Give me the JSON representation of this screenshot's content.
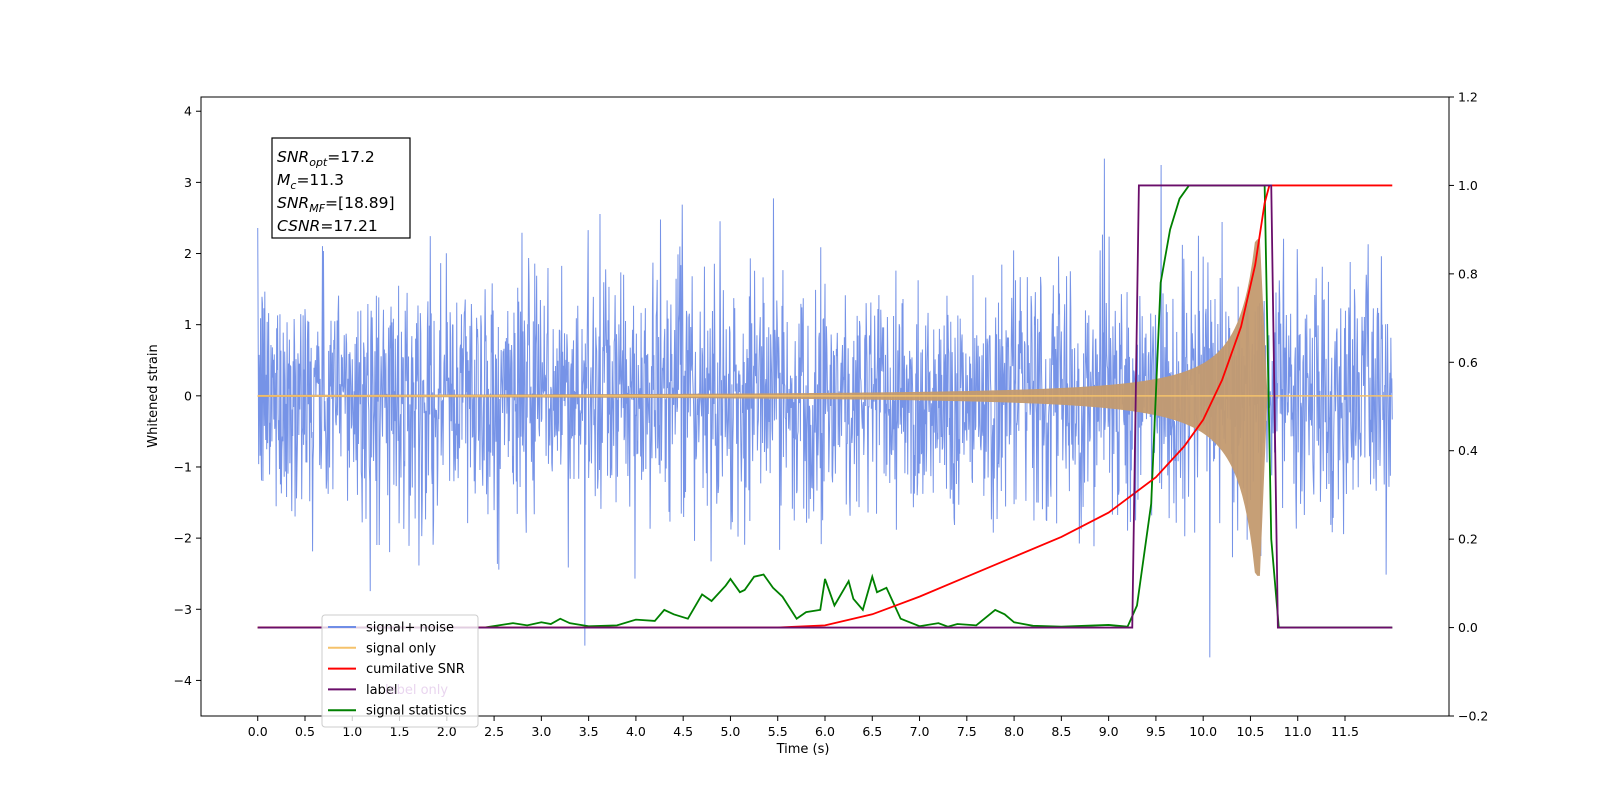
{
  "chart_data": {
    "type": "line",
    "xlabel": "Time (s)",
    "ylabel": "Whitened strain",
    "xlim": [
      -0.6,
      12.6
    ],
    "ylim": [
      -4.5,
      4.2
    ],
    "y2lim": [
      -0.2,
      1.2
    ],
    "x_ticks": [
      "0.0",
      "0.5",
      "1.0",
      "1.5",
      "2.0",
      "2.5",
      "3.0",
      "3.5",
      "4.0",
      "4.5",
      "5.0",
      "5.5",
      "6.0",
      "6.5",
      "7.0",
      "7.5",
      "8.0",
      "8.5",
      "9.0",
      "9.5",
      "10.0",
      "10.5",
      "11.0",
      "11.5"
    ],
    "y_ticks": [
      "4",
      "3",
      "2",
      "1",
      "0",
      "−1",
      "−2",
      "−3",
      "−4"
    ],
    "y2_ticks": [
      "1.2",
      "1.0",
      "0.8",
      "0.6",
      "0.4",
      "0.2",
      "0.0",
      "−0.2"
    ],
    "legend_position": "lower-left",
    "grid": false,
    "info_box": [
      {
        "sym": "SNR",
        "sub": "opt",
        "val": "=17.2"
      },
      {
        "sym": "M",
        "sub": "c",
        "val": "=11.3"
      },
      {
        "sym": "SNR",
        "sub": "MF",
        "val": "=[18.89]"
      },
      {
        "sym": "CSNR",
        "sub": "",
        "val": "=17.21"
      }
    ],
    "series": [
      {
        "name": "signal+ noise",
        "color": "#6f8de6",
        "axis": "left",
        "description": "whitened noisy strain, approx. gaussian with std ~0.85 around 0, from t=0.0 to 12.0 s"
      },
      {
        "name": "signal only",
        "color": "#f5c26b",
        "axis": "left",
        "description": "chirp with amplitude growing from ~0 to ~2.2 peak near t=10.65 s, then 0"
      },
      {
        "name": "cumilative SNR",
        "color": "#ff0000",
        "axis": "right",
        "x": [
          0,
          5.5,
          6.0,
          6.5,
          7.0,
          7.5,
          8.0,
          8.5,
          9.0,
          9.5,
          9.8,
          10.0,
          10.2,
          10.4,
          10.55,
          10.65,
          10.7,
          12.0
        ],
        "values": [
          0,
          0,
          0.005,
          0.03,
          0.07,
          0.115,
          0.16,
          0.205,
          0.26,
          0.34,
          0.41,
          0.47,
          0.56,
          0.68,
          0.82,
          0.96,
          1.0,
          1.0
        ]
      },
      {
        "name": "label",
        "color": "#6a0d6a",
        "axis": "right",
        "x": [
          0,
          9.25,
          9.32,
          10.72,
          10.79,
          12.0
        ],
        "values": [
          0,
          0,
          1.0,
          1.0,
          0,
          0
        ]
      },
      {
        "name": "label only",
        "color": "#d8b4e2",
        "axis": "right",
        "x": [],
        "values": []
      },
      {
        "name": "signal statistics",
        "color": "#008000",
        "axis": "right",
        "x": [
          0,
          2.4,
          2.7,
          2.85,
          3.0,
          3.1,
          3.2,
          3.3,
          3.5,
          3.8,
          4.0,
          4.2,
          4.3,
          4.4,
          4.55,
          4.7,
          4.8,
          4.95,
          5.0,
          5.1,
          5.15,
          5.25,
          5.35,
          5.45,
          5.55,
          5.7,
          5.8,
          5.95,
          6.0,
          6.1,
          6.25,
          6.3,
          6.4,
          6.5,
          6.55,
          6.65,
          6.8,
          7.0,
          7.2,
          7.3,
          7.4,
          7.6,
          7.8,
          7.9,
          8.0,
          8.2,
          8.5,
          9.0,
          9.2,
          9.3,
          9.45,
          9.55,
          9.65,
          9.75,
          9.85,
          9.95,
          10.05,
          10.55,
          10.65,
          10.72,
          10.8,
          12.0
        ],
        "values": [
          0,
          0.0,
          0.01,
          0.005,
          0.012,
          0.008,
          0.02,
          0.01,
          0.003,
          0.005,
          0.018,
          0.015,
          0.04,
          0.03,
          0.02,
          0.075,
          0.06,
          0.095,
          0.11,
          0.08,
          0.085,
          0.115,
          0.12,
          0.09,
          0.07,
          0.02,
          0.035,
          0.04,
          0.11,
          0.05,
          0.105,
          0.065,
          0.04,
          0.115,
          0.08,
          0.09,
          0.02,
          0.003,
          0.01,
          0.002,
          0.008,
          0.005,
          0.04,
          0.03,
          0.012,
          0.004,
          0.002,
          0.006,
          0.002,
          0.05,
          0.28,
          0.78,
          0.9,
          0.97,
          1.0,
          1.0,
          1.0,
          1.0,
          1.0,
          0.2,
          0,
          0
        ]
      }
    ]
  }
}
